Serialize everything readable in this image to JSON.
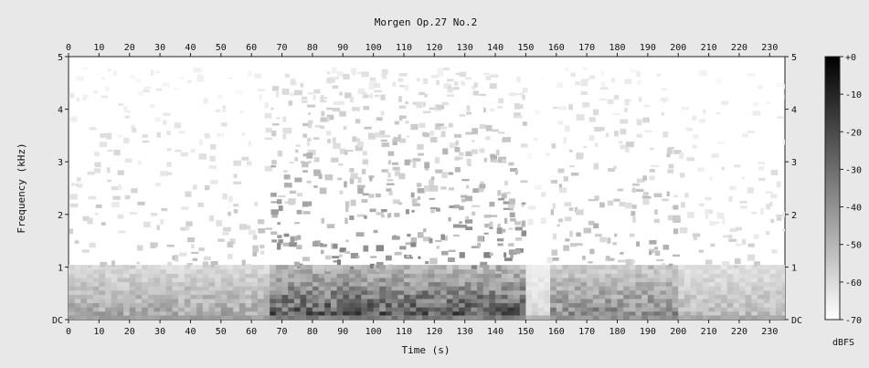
{
  "chart_data": {
    "type": "heatmap",
    "title": "Morgen Op.27 No.2",
    "xlabel": "Time (s)",
    "ylabel": "Frequency (kHz)",
    "xlim": [
      0,
      235
    ],
    "ylim": [
      0,
      5
    ],
    "x_ticks": [
      0,
      10,
      20,
      30,
      40,
      50,
      60,
      70,
      80,
      90,
      100,
      110,
      120,
      130,
      140,
      150,
      160,
      170,
      180,
      190,
      200,
      210,
      220,
      230
    ],
    "y_ticks": [
      {
        "value": 0,
        "label": "DC"
      },
      {
        "value": 1,
        "label": "1"
      },
      {
        "value": 2,
        "label": "2"
      },
      {
        "value": 3,
        "label": "3"
      },
      {
        "value": 4,
        "label": "4"
      },
      {
        "value": 5,
        "label": "5"
      }
    ],
    "colorbar": {
      "label": "dBFS",
      "range": [
        -70,
        0
      ],
      "ticks": [
        {
          "value": 0,
          "label": "+0"
        },
        {
          "value": -10,
          "label": "-10"
        },
        {
          "value": -20,
          "label": "-20"
        },
        {
          "value": -30,
          "label": "-30"
        },
        {
          "value": -40,
          "label": "-40"
        },
        {
          "value": -50,
          "label": "-50"
        },
        {
          "value": -60,
          "label": "-60"
        },
        {
          "value": -70,
          "label": "-70"
        }
      ],
      "colors": [
        "#000000",
        "#ffffff"
      ]
    },
    "energy_profile": {
      "description_free": true,
      "segments": [
        {
          "t0": 0,
          "t1": 65,
          "level": 0.45
        },
        {
          "t0": 65,
          "t1": 150,
          "level": 0.85
        },
        {
          "t0": 150,
          "t1": 158,
          "level": 0.2
        },
        {
          "t0": 158,
          "t1": 200,
          "level": 0.6
        },
        {
          "t0": 200,
          "t1": 235,
          "level": 0.35
        }
      ]
    },
    "colors": {
      "background": "#e8e8e8",
      "plot_background": "#ffffff",
      "axis": "#111111"
    }
  }
}
